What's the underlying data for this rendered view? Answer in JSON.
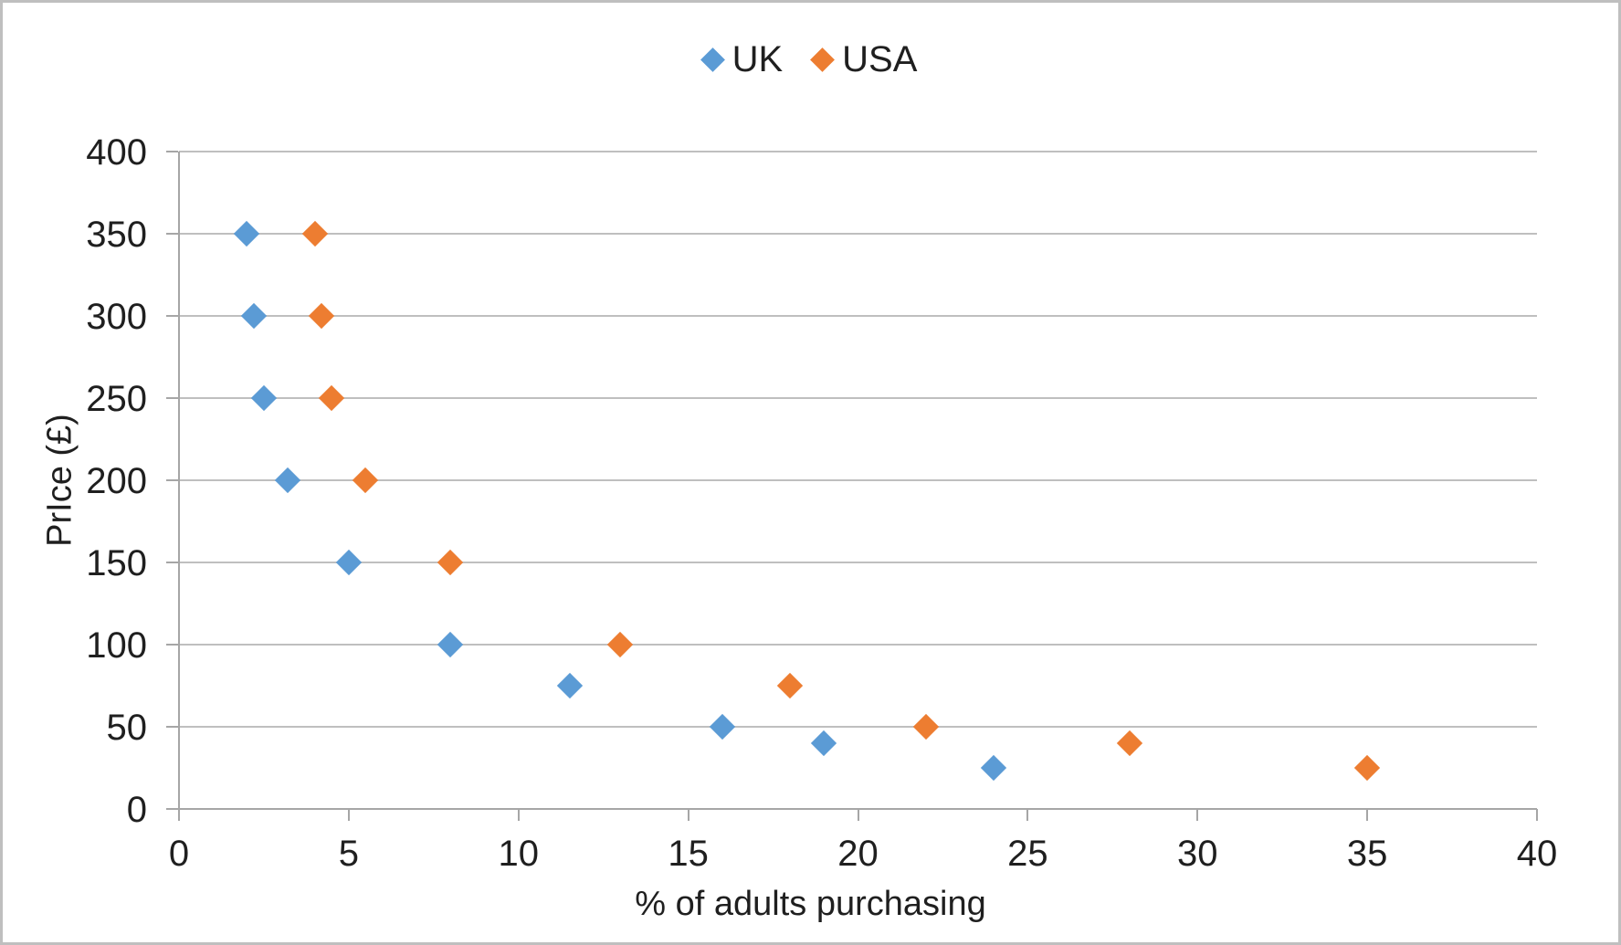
{
  "chart": {
    "background": "#ffffff",
    "border_color": "#bfbfbf",
    "text_color": "#1f1f1f",
    "gridline_color": "#bfbfbf",
    "axis_line_color": "#a6a6a6"
  },
  "chart_data": {
    "type": "scatter",
    "title": "",
    "xlabel": "% of adults purchasing",
    "ylabel": "PrIce (£)",
    "xlim": [
      0,
      40
    ],
    "ylim": [
      0,
      400
    ],
    "x_ticks": [
      0,
      5,
      10,
      15,
      20,
      25,
      30,
      35,
      40
    ],
    "y_ticks": [
      0,
      50,
      100,
      150,
      200,
      250,
      300,
      350,
      400
    ],
    "grid": "horizontal-only",
    "legend_position": "top-center",
    "marker": "diamond",
    "series": [
      {
        "name": "UK",
        "color": "#5B9BD5",
        "points": [
          [
            2,
            350
          ],
          [
            2.2,
            300
          ],
          [
            2.5,
            250
          ],
          [
            3.2,
            200
          ],
          [
            5,
            150
          ],
          [
            8,
            100
          ],
          [
            11.5,
            75
          ],
          [
            16,
            50
          ],
          [
            19,
            40
          ],
          [
            24,
            25
          ]
        ]
      },
      {
        "name": "USA",
        "color": "#ED7D31",
        "points": [
          [
            4,
            350
          ],
          [
            4.2,
            300
          ],
          [
            4.5,
            250
          ],
          [
            5.5,
            200
          ],
          [
            8,
            150
          ],
          [
            13,
            100
          ],
          [
            18,
            75
          ],
          [
            22,
            50
          ],
          [
            28,
            40
          ],
          [
            35,
            25
          ]
        ]
      }
    ]
  }
}
